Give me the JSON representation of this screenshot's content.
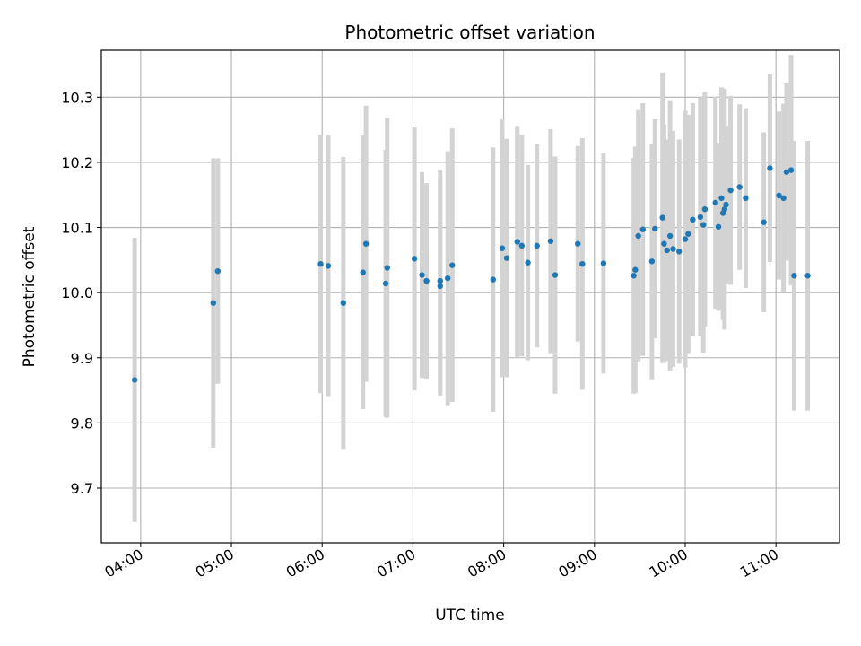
{
  "chart_data": {
    "type": "scatter",
    "title": "Photometric offset variation",
    "xlabel": "UTC time",
    "ylabel": "Photometric offset",
    "x_ticks": [
      "04:00",
      "05:00",
      "06:00",
      "07:00",
      "08:00",
      "09:00",
      "10:00",
      "11:00"
    ],
    "y_ticks": [
      "9.7",
      "9.8",
      "9.9",
      "10.0",
      "10.1",
      "10.2",
      "10.3"
    ],
    "xlim": [
      "03:34",
      "11:42"
    ],
    "ylim": [
      9.616,
      10.372
    ],
    "grid": true,
    "colors": {
      "point": "#1f77b4",
      "errorbar": "#d3d3d3",
      "grid": "#b0b0b0"
    },
    "series": [
      {
        "x": [
          "03:56",
          "04:48",
          "04:51",
          "05:59",
          "06:04",
          "06:14",
          "06:27",
          "06:29",
          "06:42",
          "06:43",
          "07:01",
          "07:06",
          "07:09",
          "07:18",
          "07:18",
          "07:23",
          "07:26",
          "07:53",
          "07:59",
          "08:02",
          "08:09",
          "08:12",
          "08:16",
          "08:22",
          "08:31",
          "08:34",
          "08:49",
          "08:52",
          "09:06",
          "09:26",
          "09:27",
          "09:29",
          "09:32",
          "09:38",
          "09:40",
          "09:45",
          "09:46",
          "09:48",
          "09:50",
          "09:52",
          "09:56",
          "10:00",
          "10:02",
          "10:05",
          "10:10",
          "10:12",
          "10:13",
          "10:20",
          "10:22",
          "10:24",
          "10:25",
          "10:26",
          "10:27",
          "10:30",
          "10:36",
          "10:40",
          "10:52",
          "10:56",
          "11:02",
          "11:05",
          "11:07",
          "11:10",
          "11:12",
          "11:21"
        ],
        "y": [
          9.866,
          9.984,
          10.033,
          10.044,
          10.041,
          9.984,
          10.031,
          10.075,
          10.014,
          10.038,
          10.052,
          10.027,
          10.018,
          10.018,
          10.01,
          10.022,
          10.042,
          10.02,
          10.068,
          10.053,
          10.078,
          10.072,
          10.046,
          10.072,
          10.079,
          10.027,
          10.075,
          10.044,
          10.045,
          10.026,
          10.035,
          10.087,
          10.097,
          10.048,
          10.098,
          10.115,
          10.075,
          10.065,
          10.087,
          10.067,
          10.063,
          10.082,
          10.09,
          10.112,
          10.116,
          10.104,
          10.128,
          10.138,
          10.101,
          10.145,
          10.122,
          10.128,
          10.135,
          10.157,
          10.162,
          10.145,
          10.108,
          10.191,
          10.149,
          10.145,
          10.185,
          10.188,
          10.026,
          10.026
        ],
        "yerr_low": [
          0.218,
          0.222,
          0.173,
          0.198,
          0.2,
          0.224,
          0.21,
          0.212,
          0.205,
          0.23,
          0.202,
          0.158,
          0.15,
          0.17,
          0.168,
          0.195,
          0.21,
          0.203,
          0.198,
          0.183,
          0.178,
          0.17,
          0.15,
          0.156,
          0.172,
          0.182,
          0.15,
          0.193,
          0.169,
          0.181,
          0.189,
          0.193,
          0.194,
          0.181,
          0.168,
          0.223,
          0.183,
          0.17,
          0.207,
          0.181,
          0.172,
          0.197,
          0.183,
          0.179,
          0.183,
          0.196,
          0.18,
          0.163,
          0.129,
          0.17,
          0.164,
          0.185,
          0.121,
          0.145,
          0.127,
          0.138,
          0.138,
          0.144,
          0.129,
          0.145,
          0.136,
          0.177,
          0.207,
          0.207
        ]
      }
    ],
    "notes_hidden": "yerr_high equals yerr_low (symmetric error bars); last duplicate point coincides with previous"
  }
}
